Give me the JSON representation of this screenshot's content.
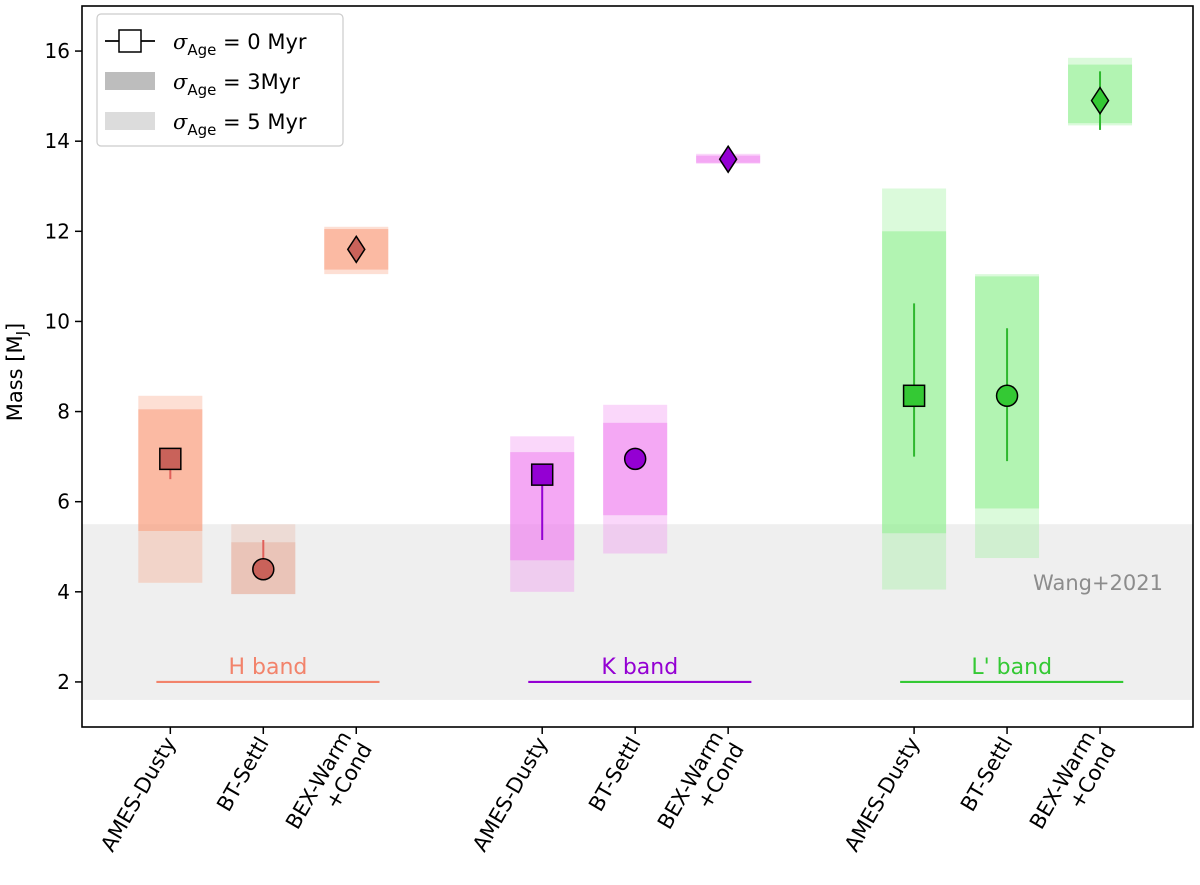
{
  "chart_data": {
    "type": "errorbar-range",
    "ylabel_main": "Mass [M",
    "ylabel_sub": "J",
    "ylabel_end": "]",
    "ylim": [
      1.0,
      17.0
    ],
    "yticks": [
      2,
      4,
      6,
      8,
      10,
      12,
      14,
      16
    ],
    "categories": [
      {
        "label": [
          "AMES-Dusty"
        ],
        "x": 1
      },
      {
        "label": [
          "BT-Settl"
        ],
        "x": 2
      },
      {
        "label": [
          "BEX-Warm",
          "+Cond"
        ],
        "x": 3
      },
      {
        "label": [
          "AMES-Dusty"
        ],
        "x": 5
      },
      {
        "label": [
          "BT-Settl"
        ],
        "x": 6
      },
      {
        "label": [
          "BEX-Warm",
          "+Cond"
        ],
        "x": 7
      },
      {
        "label": [
          "AMES-Dusty"
        ],
        "x": 9
      },
      {
        "label": [
          "BT-Settl"
        ],
        "x": 10
      },
      {
        "label": [
          "BEX-Warm",
          "+Cond"
        ],
        "x": 11
      }
    ],
    "xlim": [
      0.05,
      12.0
    ],
    "reference": {
      "label": "Wang+2021",
      "ymin": 1.6,
      "ymax": 5.5,
      "color": "#efefef"
    },
    "bands": [
      {
        "label": "H band",
        "color": "#f2836b",
        "xmin": 0.85,
        "xmax": 3.25,
        "y": 2.0
      },
      {
        "label": "K band",
        "color": "#9400d3",
        "xmin": 4.85,
        "xmax": 7.25,
        "y": 2.0
      },
      {
        "label": "L' band",
        "color": "#34c934",
        "xmin": 8.85,
        "xmax": 11.25,
        "y": 2.0
      }
    ],
    "series": [
      {
        "band": "H band",
        "model": "AMES-Dusty",
        "x": 1,
        "marker": "square",
        "value": 6.95,
        "err_low": 6.5,
        "err_high": 6.95,
        "range3": [
          5.35,
          8.05
        ],
        "range5": [
          4.2,
          8.35
        ],
        "fill": "#c9625a",
        "range_color": "#fa9a7a",
        "line_color": "#e0605a"
      },
      {
        "band": "H band",
        "model": "BT-Settl",
        "x": 2,
        "marker": "circle",
        "value": 4.5,
        "err_low": 4.5,
        "err_high": 5.15,
        "range3": [
          3.95,
          5.1
        ],
        "range5": [
          3.95,
          5.5
        ],
        "fill": "#c9625a",
        "range_color": "#e8b0a0",
        "line_color": "#e0605a"
      },
      {
        "band": "H band",
        "model": "BEX-Warm+Cond",
        "x": 3,
        "marker": "diamond",
        "value": 11.6,
        "err_low": 11.35,
        "err_high": 11.85,
        "range3": [
          11.15,
          12.05
        ],
        "range5": [
          11.05,
          12.1
        ],
        "fill": "#c9625a",
        "range_color": "#fa9a7a",
        "line_color": "#e0605a"
      },
      {
        "band": "K band",
        "model": "AMES-Dusty",
        "x": 5,
        "marker": "square",
        "value": 6.6,
        "err_low": 5.15,
        "err_high": 6.6,
        "range3": [
          4.7,
          7.1
        ],
        "range5": [
          4.0,
          7.45
        ],
        "fill": "#9400d3",
        "range_color": "#ee82ee",
        "line_color": "#9400d3"
      },
      {
        "band": "K band",
        "model": "BT-Settl",
        "x": 6,
        "marker": "circle",
        "value": 6.95,
        "err_low": 6.95,
        "err_high": 6.95,
        "range3": [
          5.7,
          7.75
        ],
        "range5": [
          4.85,
          8.15
        ],
        "fill": "#9400d3",
        "range_color": "#ee82ee",
        "line_color": "#9400d3"
      },
      {
        "band": "K band",
        "model": "BEX-Warm+Cond",
        "x": 7,
        "marker": "diamond",
        "value": 13.6,
        "err_low": 13.55,
        "err_high": 13.65,
        "range3": [
          13.52,
          13.68
        ],
        "range5": [
          13.5,
          13.72
        ],
        "fill": "#9400d3",
        "range_color": "#ee82ee",
        "line_color": "#9400d3"
      },
      {
        "band": "L' band",
        "model": "AMES-Dusty",
        "x": 9,
        "marker": "square",
        "value": 8.35,
        "err_low": 7.0,
        "err_high": 10.4,
        "range3": [
          5.3,
          12.0
        ],
        "range5": [
          4.05,
          12.95
        ],
        "fill": "#34c934",
        "range_color": "#90ee90",
        "line_color": "#2eb82e"
      },
      {
        "band": "L' band",
        "model": "BT-Settl",
        "x": 10,
        "marker": "circle",
        "value": 8.35,
        "err_low": 6.9,
        "err_high": 9.85,
        "range3": [
          5.85,
          11.0
        ],
        "range5": [
          4.75,
          11.05
        ],
        "fill": "#34c934",
        "range_color": "#90ee90",
        "line_color": "#2eb82e"
      },
      {
        "band": "L' band",
        "model": "BEX-Warm+Cond",
        "x": 11,
        "marker": "diamond",
        "value": 14.9,
        "err_low": 14.25,
        "err_high": 15.55,
        "range3": [
          14.4,
          15.7
        ],
        "range5": [
          14.35,
          15.85
        ],
        "fill": "#34c934",
        "range_color": "#90ee90",
        "line_color": "#2eb82e"
      }
    ],
    "legend": {
      "placement": "top-left",
      "entries": [
        {
          "symbol": "σ",
          "sub": "Age",
          "text": " = 0 Myr",
          "kind": "marker"
        },
        {
          "symbol": "σ",
          "sub": "Age",
          "text": " = 3Myr",
          "kind": "dark-patch",
          "color": "#bdbdbd"
        },
        {
          "symbol": "σ",
          "sub": "Age",
          "text": " = 5 Myr",
          "kind": "light-patch",
          "color": "#dcdcdc"
        }
      ]
    }
  }
}
